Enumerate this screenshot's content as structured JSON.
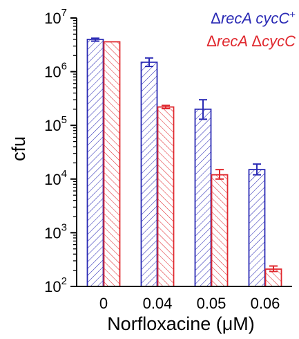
{
  "chart_data": {
    "type": "bar",
    "title": "",
    "xlabel": "Norfloxacine (μM)",
    "ylabel": "cfu",
    "yscale": "log",
    "ylim": [
      100,
      10000000
    ],
    "y_ticks": [
      {
        "value": 100,
        "base": "10",
        "exp": "2"
      },
      {
        "value": 1000,
        "base": "10",
        "exp": "3"
      },
      {
        "value": 10000,
        "base": "10",
        "exp": "4"
      },
      {
        "value": 100000,
        "base": "10",
        "exp": "5"
      },
      {
        "value": 1000000,
        "base": "10",
        "exp": "6"
      },
      {
        "value": 10000000,
        "base": "10",
        "exp": "7"
      }
    ],
    "categories": [
      "0",
      "0.04",
      "0.05",
      "0.06"
    ],
    "series": [
      {
        "name": "ΔrecA cycC+",
        "name_parts": {
          "a": "Δ",
          "b": "recA cycC",
          "sup": "+"
        },
        "color": "#2b2bb5",
        "hatch": "back",
        "values": [
          4000000,
          1500000,
          200000,
          15000
        ],
        "err": [
          [
            3700000,
            4200000
          ],
          [
            1250000,
            1800000
          ],
          [
            130000,
            300000
          ],
          [
            12000,
            19000
          ]
        ]
      },
      {
        "name": "ΔrecA ΔcycC",
        "name_parts": {
          "a": "Δ",
          "b": "recA ",
          "c": "Δ",
          "d": "cycC"
        },
        "color": "#e0282e",
        "hatch": "forward",
        "values": [
          3600000,
          220000,
          12000,
          210
        ],
        "err": [
          null,
          [
            205000,
            235000
          ],
          [
            10000,
            15000
          ],
          [
            190,
            240
          ]
        ]
      }
    ],
    "legend": "top-right",
    "grid": false
  }
}
